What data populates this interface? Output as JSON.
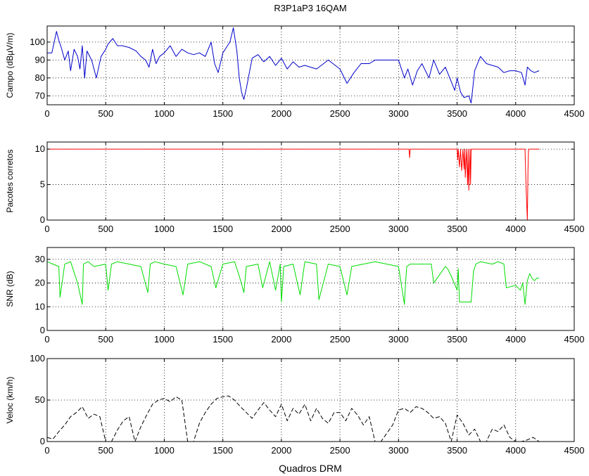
{
  "figure": {
    "title": "R3P1aP3 16QAM",
    "xlabel": "Quadros DRM"
  },
  "chart_data": [
    {
      "type": "line",
      "ylabel": "Campo (dBµV/m)",
      "xlim": [
        0,
        4500
      ],
      "ylim": [
        65,
        109
      ],
      "xticks": [
        0,
        500,
        1000,
        1500,
        2000,
        2500,
        3000,
        3500,
        4000,
        4500
      ],
      "xtick_labels": [
        "0",
        "500",
        "1000",
        "1500",
        "2000",
        "2500",
        "3000",
        "3500",
        "4000",
        "4500"
      ],
      "yticks": [
        70,
        80,
        90,
        100
      ],
      "ytick_labels": [
        "70",
        "80",
        "90",
        "100"
      ],
      "grid": true,
      "color": "#0000cc",
      "line_style": "solid",
      "series": [
        {
          "x": [
            0,
            40,
            80,
            100,
            120,
            150,
            180,
            200,
            230,
            260,
            280,
            300,
            320,
            340,
            380,
            420,
            460,
            500,
            520,
            560,
            600,
            640,
            700,
            760,
            800,
            840,
            870,
            900,
            930,
            960,
            1000,
            1050,
            1100,
            1150,
            1200,
            1250,
            1300,
            1350,
            1400,
            1430,
            1460,
            1500,
            1530,
            1560,
            1590,
            1620,
            1640,
            1660,
            1680,
            1700,
            1750,
            1800,
            1850,
            1900,
            1950,
            2000,
            2050,
            2100,
            2150,
            2200,
            2300,
            2400,
            2500,
            2560,
            2620,
            2680,
            2750,
            2800,
            2900,
            3000,
            3050,
            3080,
            3120,
            3160,
            3200,
            3260,
            3300,
            3350,
            3400,
            3450,
            3480,
            3500,
            3530,
            3560,
            3600,
            3620,
            3650,
            3700,
            3750,
            3800,
            3850,
            3900,
            3950,
            4000,
            4050,
            4080,
            4100,
            4130,
            4160,
            4200
          ],
          "y": [
            94,
            94,
            106,
            101,
            97,
            90,
            95,
            84,
            96,
            92,
            85,
            98,
            80,
            95,
            90,
            80,
            92,
            96,
            99,
            102,
            98,
            98,
            97,
            95,
            92,
            90,
            86,
            96,
            88,
            92,
            94,
            98,
            92,
            96,
            94,
            93,
            94,
            92,
            100,
            88,
            83,
            94,
            97,
            100,
            108,
            95,
            80,
            72,
            68,
            74,
            91,
            93,
            89,
            92,
            87,
            91,
            85,
            89,
            86,
            87,
            85,
            90,
            85,
            77,
            83,
            88,
            88,
            90,
            90,
            90,
            80,
            85,
            76,
            84,
            88,
            80,
            90,
            82,
            86,
            78,
            73,
            80,
            72,
            69,
            70,
            66,
            84,
            92,
            88,
            87,
            86,
            83,
            84,
            84,
            83,
            76,
            86,
            84,
            83,
            84
          ]
        }
      ]
    },
    {
      "type": "line",
      "ylabel": "Pacotes corretos",
      "xlim": [
        0,
        4500
      ],
      "ylim": [
        0,
        11
      ],
      "xticks": [
        0,
        500,
        1000,
        1500,
        2000,
        2500,
        3000,
        3500,
        4000,
        4500
      ],
      "xtick_labels": [
        "0",
        "500",
        "1000",
        "1500",
        "2000",
        "2500",
        "3000",
        "3500",
        "4000",
        "4500"
      ],
      "yticks": [
        0,
        5,
        10
      ],
      "ytick_labels": [
        "0",
        "5",
        "10"
      ],
      "grid": true,
      "color": "#ff0000",
      "line_style": "solid",
      "series": [
        {
          "x": [
            0,
            3090,
            3095,
            3100,
            3105,
            3500,
            3505,
            3510,
            3520,
            3530,
            3535,
            3540,
            3550,
            3560,
            3565,
            3570,
            3580,
            3590,
            3595,
            3600,
            3610,
            3615,
            3620,
            3640,
            4080,
            4085,
            4090,
            4095,
            4100,
            4105,
            4110,
            4200
          ],
          "y": [
            10,
            10,
            8.8,
            10,
            10,
            10,
            8.5,
            10,
            7.5,
            10,
            8,
            7,
            10,
            7.2,
            10,
            6,
            10,
            5,
            10,
            4.2,
            10,
            5,
            10,
            10,
            10,
            7,
            4,
            2,
            0,
            7,
            10,
            10
          ]
        }
      ]
    },
    {
      "type": "line",
      "ylabel": "SNR (dB)",
      "xlim": [
        0,
        4500
      ],
      "ylim": [
        0,
        35
      ],
      "xticks": [
        0,
        500,
        1000,
        1500,
        2000,
        2500,
        3000,
        3500,
        4000,
        4500
      ],
      "xtick_labels": [
        "0",
        "500",
        "1000",
        "1500",
        "2000",
        "2500",
        "3000",
        "3500",
        "4000",
        "4500"
      ],
      "yticks": [
        0,
        10,
        20,
        30
      ],
      "ytick_labels": [
        "0",
        "10",
        "20",
        "30"
      ],
      "grid": true,
      "color": "#00dd00",
      "line_style": "solid",
      "series": [
        {
          "x": [
            0,
            50,
            100,
            110,
            150,
            200,
            260,
            300,
            310,
            350,
            400,
            500,
            520,
            550,
            600,
            700,
            800,
            860,
            880,
            920,
            1000,
            1100,
            1160,
            1200,
            1300,
            1400,
            1440,
            1500,
            1600,
            1640,
            1680,
            1700,
            1800,
            1840,
            1900,
            1950,
            1990,
            2000,
            2020,
            2100,
            2160,
            2200,
            2300,
            2320,
            2400,
            2500,
            2560,
            2600,
            2700,
            2800,
            2900,
            3000,
            3050,
            3060,
            3070,
            3100,
            3200,
            3280,
            3300,
            3400,
            3420,
            3450,
            3500,
            3510,
            3520,
            3550,
            3600,
            3620,
            3640,
            3660,
            3700,
            3800,
            3850,
            3900,
            3920,
            4000,
            4040,
            4060,
            4080,
            4100,
            4120,
            4140,
            4160,
            4180,
            4200
          ],
          "y": [
            29,
            28,
            27,
            14,
            28,
            29,
            20,
            11,
            28,
            29,
            27,
            28,
            17,
            28,
            29,
            28,
            27,
            16,
            28,
            29,
            28,
            27,
            15,
            28,
            29,
            27,
            18,
            28,
            29,
            23,
            16,
            27,
            28,
            18,
            29,
            17,
            28,
            12,
            27,
            28,
            15,
            29,
            28,
            13,
            28,
            27,
            15,
            27,
            28,
            29,
            28,
            27,
            11,
            20,
            27,
            28,
            28,
            28,
            20,
            27,
            26,
            23,
            17,
            26,
            12,
            12,
            12,
            12,
            25,
            28,
            29,
            28,
            29,
            28,
            18,
            19,
            17,
            20,
            11,
            21,
            24,
            22,
            21,
            22,
            22
          ]
        }
      ]
    },
    {
      "type": "line",
      "ylabel": "Veloc (km/h)",
      "xlim": [
        0,
        4500
      ],
      "ylim": [
        0,
        100
      ],
      "xticks": [
        0,
        500,
        1000,
        1500,
        2000,
        2500,
        3000,
        3500,
        4000,
        4500
      ],
      "xtick_labels": [
        "0",
        "500",
        "1000",
        "1500",
        "2000",
        "2500",
        "3000",
        "3500",
        "4000",
        "4500"
      ],
      "yticks": [
        0,
        50,
        100
      ],
      "ytick_labels": [
        "0",
        "50",
        "100"
      ],
      "grid": true,
      "color": "#000000",
      "line_style": "dashed",
      "series": [
        {
          "x": [
            0,
            50,
            100,
            150,
            200,
            250,
            300,
            350,
            400,
            450,
            500,
            550,
            600,
            650,
            700,
            750,
            800,
            850,
            900,
            950,
            1000,
            1050,
            1100,
            1150,
            1200,
            1250,
            1300,
            1350,
            1400,
            1450,
            1500,
            1550,
            1600,
            1650,
            1700,
            1750,
            1800,
            1850,
            1900,
            1950,
            2000,
            2050,
            2100,
            2150,
            2200,
            2250,
            2300,
            2350,
            2400,
            2450,
            2500,
            2550,
            2600,
            2650,
            2700,
            2750,
            2800,
            2850,
            2900,
            2950,
            3000,
            3050,
            3100,
            3150,
            3200,
            3250,
            3300,
            3350,
            3400,
            3450,
            3500,
            3550,
            3600,
            3650,
            3700,
            3750,
            3800,
            3850,
            3900,
            3950,
            4000,
            4050,
            4100,
            4150,
            4200
          ],
          "y": [
            5,
            3,
            12,
            20,
            30,
            35,
            42,
            28,
            33,
            30,
            0,
            0,
            14,
            25,
            30,
            0,
            18,
            32,
            45,
            50,
            52,
            48,
            54,
            50,
            0,
            0,
            22,
            35,
            45,
            52,
            54,
            55,
            50,
            42,
            35,
            28,
            38,
            47,
            38,
            30,
            45,
            25,
            40,
            33,
            45,
            25,
            40,
            28,
            22,
            35,
            35,
            25,
            40,
            32,
            20,
            30,
            0,
            0,
            10,
            20,
            38,
            40,
            35,
            42,
            40,
            35,
            28,
            30,
            22,
            0,
            32,
            22,
            8,
            15,
            0,
            0,
            15,
            12,
            20,
            5,
            0,
            0,
            2,
            5,
            0
          ]
        }
      ]
    }
  ]
}
